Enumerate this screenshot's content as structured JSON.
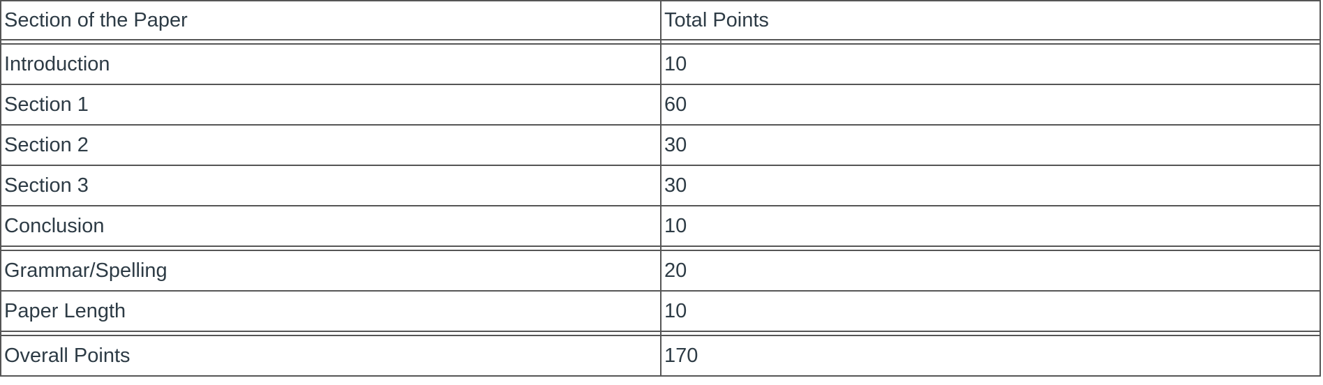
{
  "table": {
    "headers": [
      "Section of the Paper",
      "Total Points"
    ],
    "groups": [
      [
        {
          "section": "Introduction",
          "points": "10"
        },
        {
          "section": "Section 1",
          "points": "60"
        },
        {
          "section": "Section 2",
          "points": "30"
        },
        {
          "section": "Section 3",
          "points": "30"
        },
        {
          "section": "Conclusion",
          "points": "10"
        }
      ],
      [
        {
          "section": "Grammar/Spelling",
          "points": "20"
        },
        {
          "section": "Paper Length",
          "points": "10"
        }
      ],
      [
        {
          "section": "Overall Points",
          "points": "170"
        }
      ]
    ]
  },
  "colors": {
    "text": "#2d3b45",
    "border": "#555555"
  }
}
